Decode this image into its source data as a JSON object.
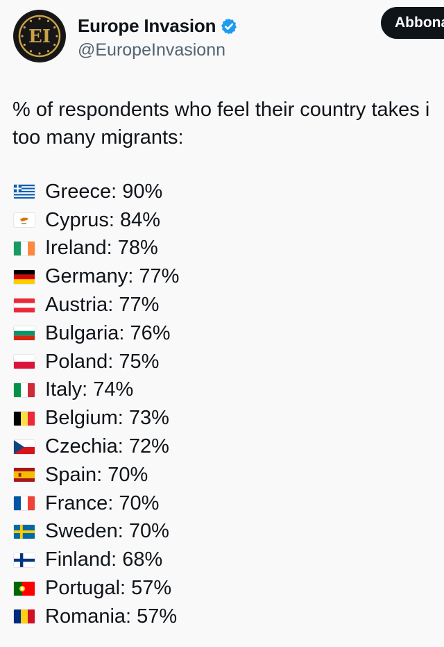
{
  "post": {
    "author": {
      "display_name": "Europe Invasion",
      "handle": "@EuropeInvasionn",
      "avatar_text": "EI",
      "verified": true
    },
    "follow_button_label": "Abbona",
    "text_line1": "% of respondents who feel their country takes i",
    "text_line2": "too many migrants:",
    "items": [
      {
        "country": "Greece",
        "value": "90%",
        "label": "Greece: 90%",
        "flag": "greece-flag-icon"
      },
      {
        "country": "Cyprus",
        "value": "84%",
        "label": "Cyprus: 84%",
        "flag": "cyprus-flag-icon"
      },
      {
        "country": "Ireland",
        "value": "78%",
        "label": "Ireland: 78%",
        "flag": "ireland-flag-icon"
      },
      {
        "country": "Germany",
        "value": "77%",
        "label": "Germany: 77%",
        "flag": "germany-flag-icon"
      },
      {
        "country": "Austria",
        "value": "77%",
        "label": "Austria: 77%",
        "flag": "austria-flag-icon"
      },
      {
        "country": "Bulgaria",
        "value": "76%",
        "label": "Bulgaria: 76%",
        "flag": "bulgaria-flag-icon"
      },
      {
        "country": "Poland",
        "value": "75%",
        "label": "Poland: 75%",
        "flag": "poland-flag-icon"
      },
      {
        "country": "Italy",
        "value": "74%",
        "label": "Italy: 74%",
        "flag": "italy-flag-icon"
      },
      {
        "country": "Belgium",
        "value": "73%",
        "label": "Belgium: 73%",
        "flag": "belgium-flag-icon"
      },
      {
        "country": "Czechia",
        "value": "72%",
        "label": "Czechia: 72%",
        "flag": "czechia-flag-icon"
      },
      {
        "country": "Spain",
        "value": "70%",
        "label": "Spain: 70%",
        "flag": "spain-flag-icon"
      },
      {
        "country": "France",
        "value": "70%",
        "label": "France: 70%",
        "flag": "france-flag-icon"
      },
      {
        "country": "Sweden",
        "value": "70%",
        "label": "Sweden: 70%",
        "flag": "sweden-flag-icon"
      },
      {
        "country": "Finland",
        "value": "68%",
        "label": "Finland: 68%",
        "flag": "finland-flag-icon"
      },
      {
        "country": "Portugal",
        "value": "57%",
        "label": "Portugal: 57%",
        "flag": "portugal-flag-icon"
      },
      {
        "country": "Romania",
        "value": "57%",
        "label": "Romania: 57%",
        "flag": "romania-flag-icon"
      }
    ]
  },
  "colors": {
    "text": "#0f1419",
    "secondary_text": "#536471",
    "verified_blue": "#1d9bf0",
    "avatar_gold": "#c9a24a",
    "button_bg": "#0f1419"
  }
}
